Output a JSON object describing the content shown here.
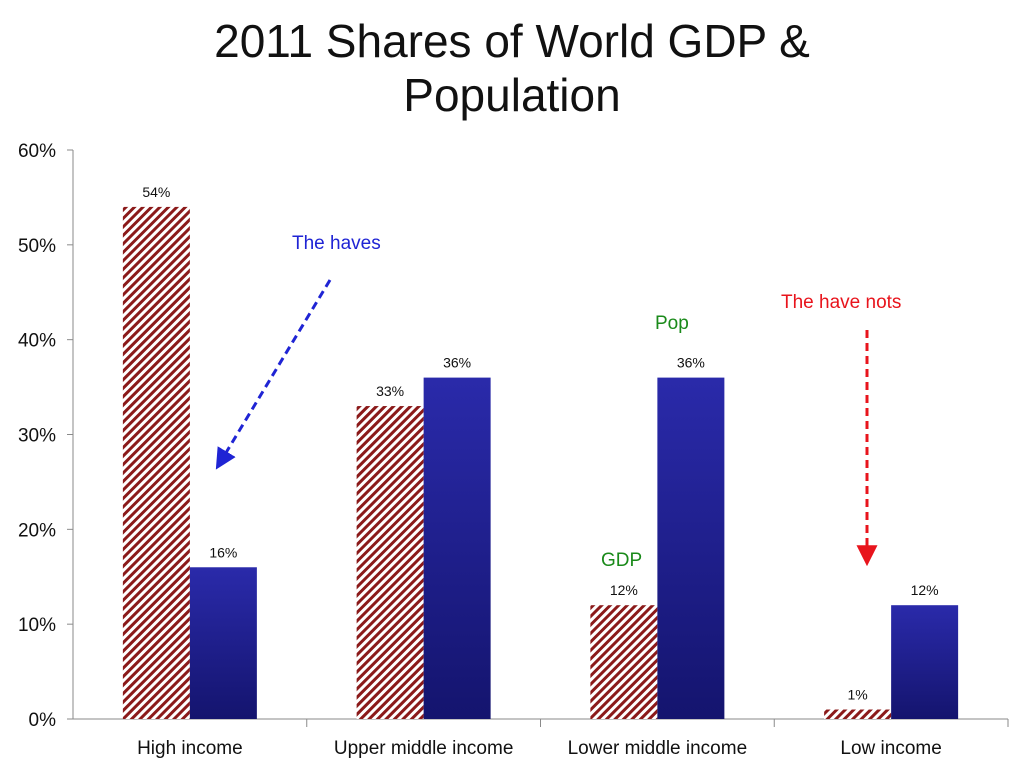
{
  "title_line1": "2011 Shares of World GDP &",
  "title_line2": "Population",
  "chart_data": {
    "type": "bar",
    "title": "2011 Shares of World GDP & Population",
    "categories": [
      "High income",
      "Upper middle income",
      "Lower middle income",
      "Low income"
    ],
    "series": [
      {
        "name": "GDP",
        "values": [
          54,
          33,
          12,
          1
        ],
        "labels": [
          "54%",
          "33%",
          "12%",
          "1%"
        ],
        "color": "#8b1a1a",
        "pattern": "diagonal-hatch"
      },
      {
        "name": "Pop",
        "values": [
          16,
          36,
          36,
          12
        ],
        "labels": [
          "16%",
          "36%",
          "36%",
          "12%"
        ],
        "color": "#22229a",
        "pattern": "gradient"
      }
    ],
    "yticks": [
      "0%",
      "10%",
      "20%",
      "30%",
      "40%",
      "50%",
      "60%"
    ],
    "ylim": [
      0,
      60
    ],
    "xlabel": "",
    "ylabel": "",
    "grid": false,
    "annotations": [
      {
        "text": "The haves",
        "color": "#1f24d4",
        "points_to": "High income Pop bar"
      },
      {
        "text": "The have nots",
        "color": "#e8141c",
        "points_to": "Low income GDP bar"
      },
      {
        "text": "Pop",
        "color": "#1a8a1a",
        "labels_series": "Pop",
        "category": "Lower middle income"
      },
      {
        "text": "GDP",
        "color": "#1a8a1a",
        "labels_series": "GDP",
        "category": "Lower middle income"
      }
    ]
  }
}
